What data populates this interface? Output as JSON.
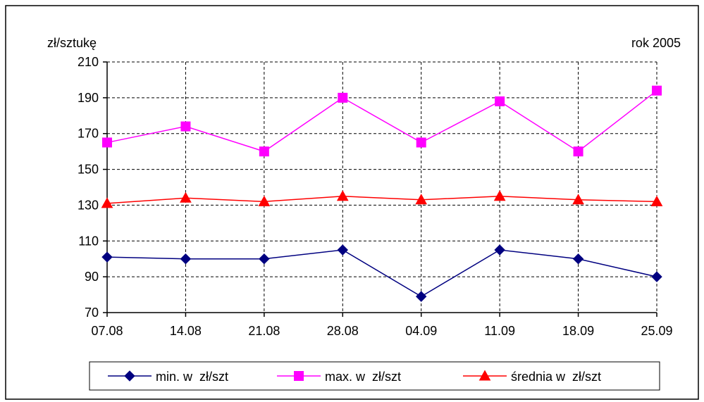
{
  "chart_data": {
    "type": "line",
    "ylabel": "zł/sztukę",
    "annotation": "rok 2005",
    "categories": [
      "07.08",
      "14.08",
      "21.08",
      "28.08",
      "04.09",
      "11.09",
      "18.09",
      "25.09"
    ],
    "ylim": [
      70,
      210
    ],
    "yticks": [
      70,
      90,
      110,
      130,
      150,
      170,
      190,
      210
    ],
    "grid": true,
    "legend_position": "bottom",
    "series": [
      {
        "name": "min. w  zł/szt",
        "marker": "diamond",
        "color": "#000080",
        "values": [
          101,
          100,
          100,
          105,
          79,
          105,
          100,
          90
        ]
      },
      {
        "name": "max. w  zł/szt",
        "marker": "square",
        "color": "#FF00FF",
        "values": [
          165,
          174,
          160,
          190,
          165,
          188,
          160,
          194
        ]
      },
      {
        "name": "średnia w  zł/szt",
        "marker": "triangle",
        "color": "#FF0000",
        "values": [
          131,
          134,
          132,
          135,
          133,
          135,
          133,
          132
        ]
      }
    ]
  }
}
